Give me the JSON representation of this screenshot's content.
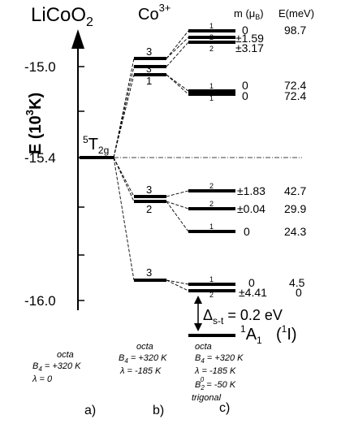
{
  "title": {
    "main": "LiCoO",
    "sub": "2",
    "ion": "Co",
    "ion_sup": "3+"
  },
  "header": {
    "m_label": "m (μ",
    "m_sub": "B",
    "m_close": ")",
    "e_label": "E(meV)"
  },
  "axis": {
    "label_main": "E (10",
    "label_sup": "3",
    "label_end": "K)",
    "ticks": [
      "-15.0",
      "-15.4",
      "-16.0"
    ]
  },
  "term": {
    "prefix": "5",
    "symbol": "T",
    "sub": "2g"
  },
  "level_labels": {
    "octa_lambda": [
      "3",
      "3",
      "1",
      "3",
      "2",
      "3"
    ],
    "trigonal": [
      "1",
      "2",
      "2",
      "1",
      "1",
      "2",
      "2",
      "1",
      "1",
      "2"
    ]
  },
  "m_values": [
    "0",
    "±1.59",
    "±3.17",
    "0",
    "0",
    "±1.83",
    "±0.04",
    "0",
    "0",
    "±4.41"
  ],
  "e_values": [
    "98.7",
    "72.4",
    "72.4",
    "42.7",
    "29.9",
    "24.3",
    "4.5",
    "0"
  ],
  "gap": {
    "delta": "Δ",
    "sub": "s-t",
    "value": " = 0.2 eV"
  },
  "ground": {
    "sup": "1",
    "symbol": "A",
    "sub": "1",
    "paren_sup": "1",
    "paren_label": "I"
  },
  "conditions": {
    "a": {
      "head": "octa",
      "b4": "B",
      "b4_sub": "4",
      "b4_val": " = +320 K",
      "lambda": "λ = 0"
    },
    "b": {
      "head": "octa",
      "b4": "B",
      "b4_sub": "4",
      "b4_val": " = +320 K",
      "lambda": "λ  = -185 K"
    },
    "c": {
      "head": "octa",
      "b4": "B",
      "b4_sub": "4",
      "b4_val": " = +320 K",
      "lambda": "λ = -185 K",
      "b2": "B",
      "b2_sub": "2",
      "b2_sup": "0",
      "b2_val": " = -50 K",
      "tail": "trigonal"
    }
  },
  "panels": [
    "a)",
    "b)",
    "c)"
  ]
}
